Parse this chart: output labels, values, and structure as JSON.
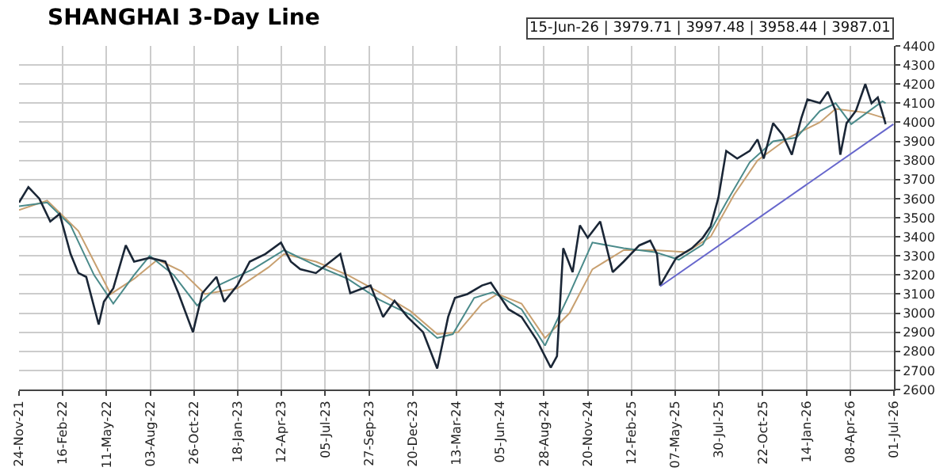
{
  "chart_data": {
    "type": "line",
    "title": "SHANGHAI 3-Day Line",
    "annotations": [
      "15-Jun-26 | 3979.71 | 3997.48 | 3958.44 | 3987.01"
    ],
    "series": [
      {
        "color": "#c8a070",
        "x": [
          "2021-11-24",
          "2022-01-17",
          "2022-03-18",
          "2022-05-19",
          "2022-07-03",
          "2022-08-17",
          "2022-10-02",
          "2022-11-16",
          "2023-01-17",
          "2023-03-18",
          "2023-04-17",
          "2023-06-17",
          "2023-08-17",
          "2023-10-17",
          "2023-12-16",
          "2024-02-05",
          "2024-03-16",
          "2024-05-01",
          "2024-05-31",
          "2024-07-16",
          "2024-08-30",
          "2024-10-16",
          "2024-11-29",
          "2025-01-28",
          "2025-03-29",
          "2025-05-29",
          "2025-07-14",
          "2025-08-28",
          "2025-10-12",
          "2025-12-11",
          "2026-02-09",
          "2026-03-11",
          "2026-04-10",
          "2026-05-10",
          "2026-06-15"
        ],
        "values": [
          3540,
          3590,
          3430,
          3100,
          3180,
          3280,
          3220,
          3100,
          3130,
          3240,
          3310,
          3270,
          3200,
          3110,
          3010,
          2890,
          2900,
          3050,
          3100,
          3050,
          2870,
          3000,
          3230,
          3330,
          3330,
          3320,
          3400,
          3620,
          3800,
          3920,
          4000,
          4070,
          4060,
          4050,
          4020
        ]
      },
      {
        "color": "#4a8a8a",
        "x": [
          "2021-11-24",
          "2022-01-17",
          "2022-03-03",
          "2022-04-17",
          "2022-05-24",
          "2022-07-03",
          "2022-08-02",
          "2022-09-17",
          "2022-11-01",
          "2022-12-15",
          "2023-02-16",
          "2023-04-17",
          "2023-06-17",
          "2023-08-17",
          "2023-10-17",
          "2023-12-16",
          "2024-02-05",
          "2024-03-06",
          "2024-04-16",
          "2024-05-22",
          "2024-07-16",
          "2024-08-30",
          "2024-10-16",
          "2024-11-29",
          "2025-01-28",
          "2025-03-29",
          "2025-05-14",
          "2025-06-29",
          "2025-08-13",
          "2025-09-27",
          "2025-11-11",
          "2025-12-26",
          "2026-02-09",
          "2026-03-11",
          "2026-04-10",
          "2026-05-10",
          "2026-06-09",
          "2026-06-15"
        ],
        "values": [
          3560,
          3580,
          3460,
          3200,
          3050,
          3200,
          3300,
          3200,
          3040,
          3150,
          3230,
          3330,
          3250,
          3180,
          3070,
          2990,
          2870,
          2890,
          3080,
          3110,
          3020,
          2830,
          3100,
          3370,
          3340,
          3320,
          3280,
          3360,
          3580,
          3790,
          3900,
          3920,
          4060,
          4100,
          3990,
          4050,
          4110,
          4100
        ]
      },
      {
        "color": "#1a2636",
        "x": [
          "2021-11-24",
          "2021-12-12",
          "2022-01-02",
          "2022-01-23",
          "2022-02-10",
          "2022-03-03",
          "2022-03-18",
          "2022-04-02",
          "2022-04-26",
          "2022-05-06",
          "2022-05-24",
          "2022-06-17",
          "2022-07-03",
          "2022-08-02",
          "2022-09-01",
          "2022-09-26",
          "2022-10-24",
          "2022-11-11",
          "2022-12-08",
          "2022-12-23",
          "2023-01-17",
          "2023-02-10",
          "2023-03-12",
          "2023-04-11",
          "2023-04-30",
          "2023-05-18",
          "2023-06-17",
          "2023-08-03",
          "2023-08-22",
          "2023-09-30",
          "2023-10-24",
          "2023-11-15",
          "2023-12-10",
          "2024-01-09",
          "2024-02-05",
          "2024-02-26",
          "2024-03-10",
          "2024-04-03",
          "2024-05-01",
          "2024-05-18",
          "2024-06-21",
          "2024-07-16",
          "2024-08-14",
          "2024-09-10",
          "2024-09-22",
          "2024-10-04",
          "2024-10-22",
          "2024-11-05",
          "2024-11-20",
          "2024-12-14",
          "2025-01-07",
          "2025-01-28",
          "2025-02-27",
          "2025-03-20",
          "2025-04-02",
          "2025-04-08",
          "2025-05-09",
          "2025-06-08",
          "2025-06-29",
          "2025-07-14",
          "2025-07-29",
          "2025-08-13",
          "2025-09-03",
          "2025-09-27",
          "2025-10-12",
          "2025-10-24",
          "2025-11-11",
          "2025-11-29",
          "2025-12-17",
          "2026-01-04",
          "2026-01-16",
          "2026-02-09",
          "2026-02-24",
          "2026-03-11",
          "2026-03-20",
          "2026-04-01",
          "2026-04-19",
          "2026-05-07",
          "2026-05-19",
          "2026-05-31",
          "2026-06-12",
          "2026-06-15"
        ],
        "values": [
          3580,
          3660,
          3600,
          3480,
          3520,
          3310,
          3210,
          3190,
          2940,
          3060,
          3130,
          3355,
          3270,
          3290,
          3270,
          3105,
          2900,
          3105,
          3190,
          3060,
          3145,
          3270,
          3310,
          3370,
          3270,
          3230,
          3210,
          3310,
          3105,
          3145,
          2980,
          3065,
          2980,
          2900,
          2710,
          2980,
          3080,
          3100,
          3145,
          3160,
          3020,
          2980,
          2860,
          2715,
          2775,
          3340,
          3215,
          3460,
          3395,
          3480,
          3215,
          3270,
          3355,
          3380,
          3310,
          3145,
          3290,
          3340,
          3395,
          3455,
          3605,
          3850,
          3810,
          3850,
          3910,
          3810,
          3995,
          3935,
          3830,
          4020,
          4120,
          4100,
          4160,
          4060,
          3830,
          3995,
          4060,
          4200,
          4100,
          4130,
          4020,
          3990
        ]
      },
      {
        "color": "#6666cc",
        "x": [
          "2025-04-08",
          "2026-06-30"
        ],
        "values": [
          3140,
          3990
        ]
      }
    ],
    "xlim": [
      "2021-11-24",
      "2026-07-01"
    ],
    "xticks": [
      {
        "value": "2021-11-24",
        "label": "24-Nov-21"
      },
      {
        "value": "2022-02-16",
        "label": "16-Feb-22"
      },
      {
        "value": "2022-05-11",
        "label": "11-May-22"
      },
      {
        "value": "2022-08-03",
        "label": "03-Aug-22"
      },
      {
        "value": "2022-10-26",
        "label": "26-Oct-22"
      },
      {
        "value": "2023-01-18",
        "label": "18-Jan-23"
      },
      {
        "value": "2023-04-12",
        "label": "12-Apr-23"
      },
      {
        "value": "2023-07-05",
        "label": "05-Jul-23"
      },
      {
        "value": "2023-09-27",
        "label": "27-Sep-23"
      },
      {
        "value": "2023-12-20",
        "label": "20-Dec-23"
      },
      {
        "value": "2024-03-13",
        "label": "13-Mar-24"
      },
      {
        "value": "2024-06-05",
        "label": "05-Jun-24"
      },
      {
        "value": "2024-08-28",
        "label": "28-Aug-24"
      },
      {
        "value": "2024-11-20",
        "label": "20-Nov-24"
      },
      {
        "value": "2025-02-12",
        "label": "12-Feb-25"
      },
      {
        "value": "2025-05-07",
        "label": "07-May-25"
      },
      {
        "value": "2025-07-30",
        "label": "30-Jul-25"
      },
      {
        "value": "2025-10-22",
        "label": "22-Oct-25"
      },
      {
        "value": "2026-01-14",
        "label": "14-Jan-26"
      },
      {
        "value": "2026-04-08",
        "label": "08-Apr-26"
      },
      {
        "value": "2026-07-01",
        "label": "01-Jul-26"
      }
    ],
    "ylim": [
      2600,
      4400
    ],
    "yticks": [
      2600,
      2700,
      2800,
      2900,
      3000,
      3100,
      3200,
      3300,
      3400,
      3500,
      3600,
      3700,
      3800,
      3900,
      4000,
      4100,
      4200,
      4300,
      4400
    ],
    "grid": true,
    "marker": "none",
    "line_style": "solid"
  }
}
